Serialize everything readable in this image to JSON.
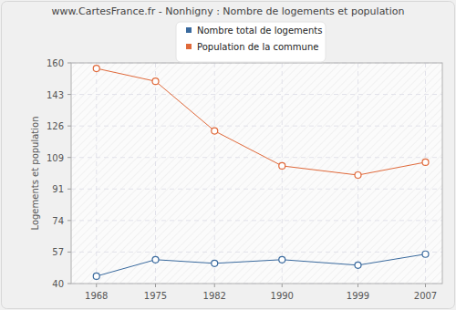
{
  "chart_data": {
    "type": "line",
    "title": "www.CartesFrance.fr - Nonhigny : Nombre de logements et population",
    "y_label": "Logements et population",
    "x": [
      1968,
      1975,
      1982,
      1990,
      1999,
      2007
    ],
    "xlim": [
      1965,
      2009
    ],
    "xticks": [
      1968,
      1975,
      1982,
      1990,
      1999,
      2007
    ],
    "ylim": [
      40,
      160
    ],
    "yticks": [
      40,
      {
        "value": 57.14,
        "label": "57"
      },
      {
        "value": 74.29,
        "label": "74"
      },
      {
        "value": 91.43,
        "label": "91"
      },
      {
        "value": 108.57,
        "label": "109"
      },
      {
        "value": 125.71,
        "label": "126"
      },
      {
        "value": 142.86,
        "label": "143"
      },
      160
    ],
    "grid": true,
    "legend": "top",
    "series": [
      {
        "name": "Nombre total de logements",
        "color": "#3a6a9e",
        "marker": "circle",
        "values": [
          44,
          53,
          51,
          53,
          50,
          56
        ]
      },
      {
        "name": "Population de la commune",
        "color": "#e0693a",
        "marker": "circle",
        "values": [
          157,
          150,
          123,
          104,
          99,
          106
        ]
      }
    ]
  }
}
